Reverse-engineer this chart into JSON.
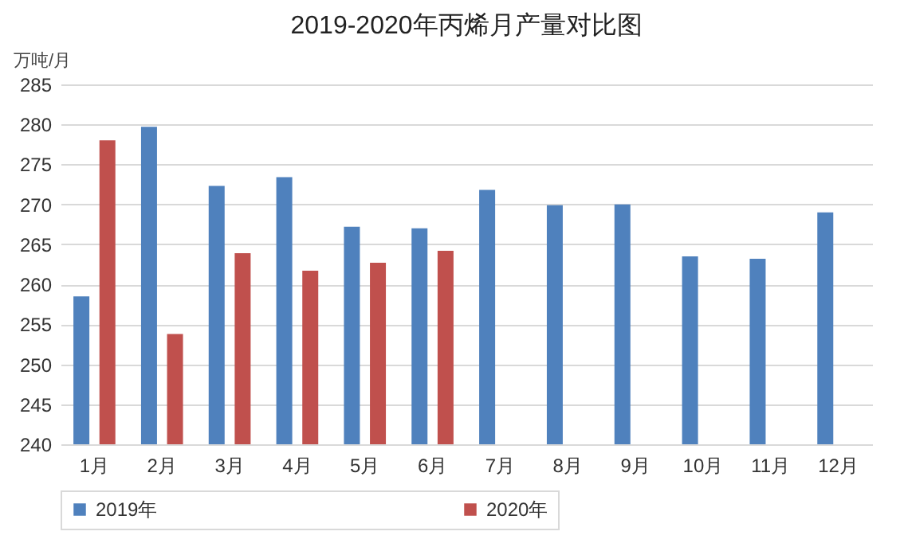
{
  "chart_data": {
    "type": "bar",
    "title": "2019-2020年丙烯月产量对比图",
    "ylabel": "万吨/月",
    "categories": [
      "1月",
      "2月",
      "3月",
      "4月",
      "5月",
      "6月",
      "7月",
      "8月",
      "9月",
      "10月",
      "11月",
      "12月"
    ],
    "series": [
      {
        "name": "2019年",
        "color": "#4f81bd",
        "values": [
          258.5,
          279.7,
          272.3,
          273.4,
          267.2,
          267.0,
          271.8,
          269.9,
          270.0,
          263.5,
          263.2,
          269.0
        ]
      },
      {
        "name": "2020年",
        "color": "#c0504d",
        "values": [
          278.0,
          253.8,
          263.9,
          261.7,
          262.7,
          264.2,
          null,
          null,
          null,
          null,
          null,
          null
        ]
      }
    ],
    "ylim": [
      240,
      285
    ],
    "yticks": [
      240,
      245,
      250,
      255,
      260,
      265,
      270,
      275,
      280,
      285
    ],
    "grid": "y",
    "legend": "bottom"
  }
}
